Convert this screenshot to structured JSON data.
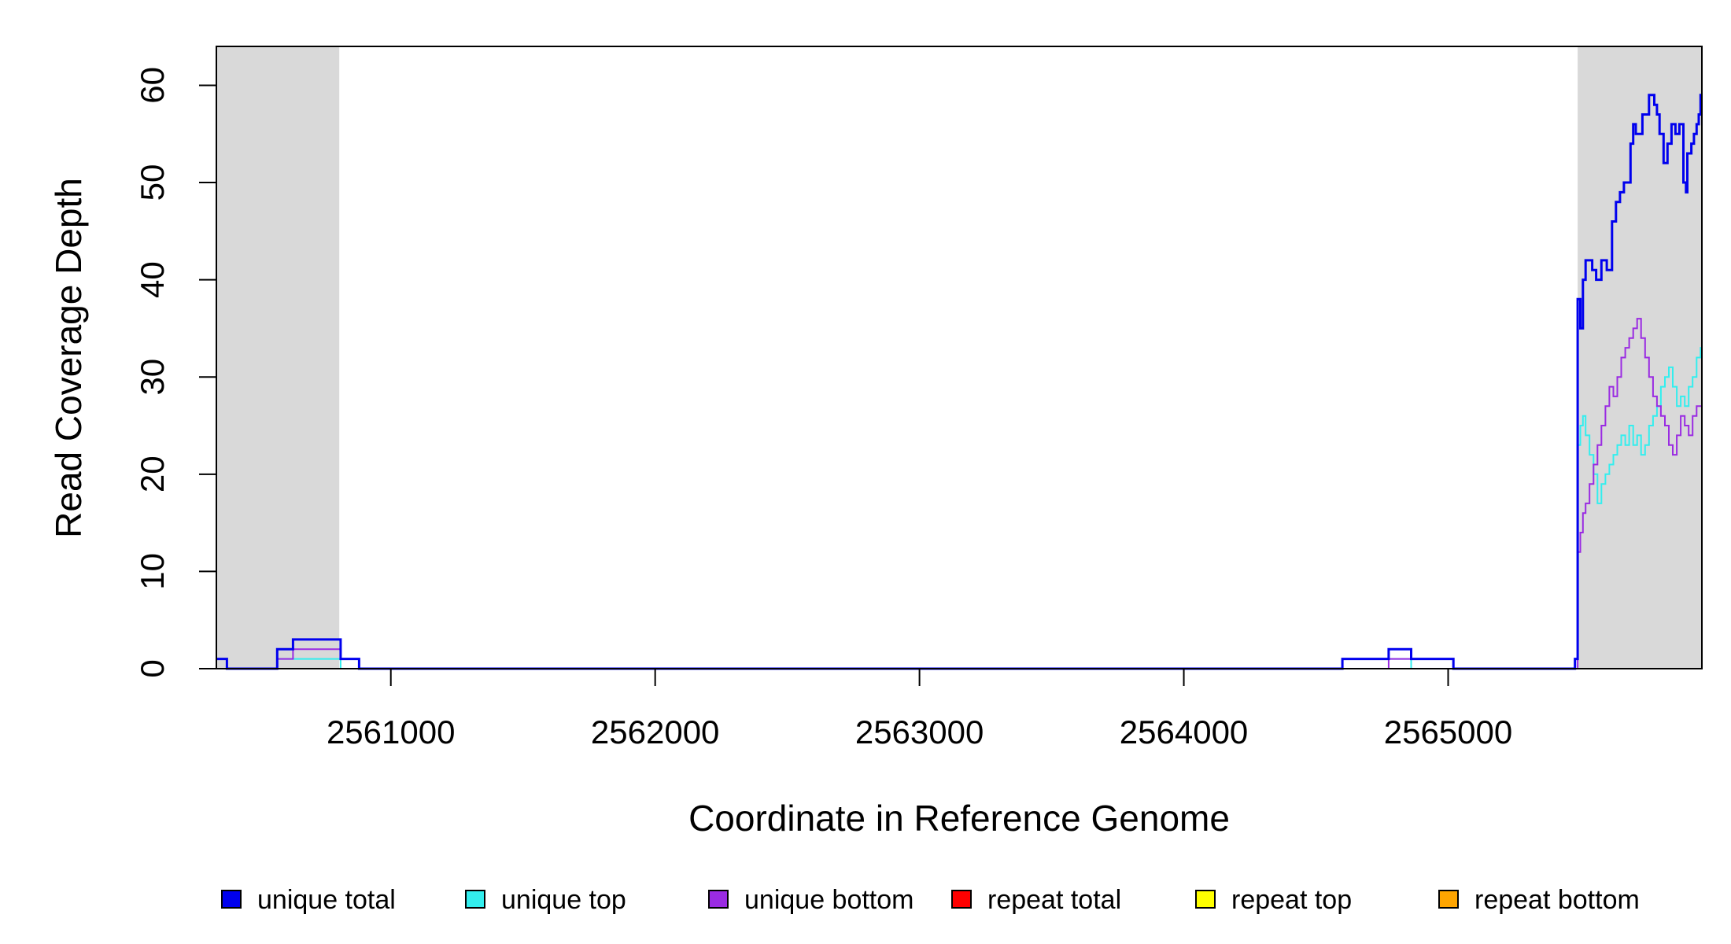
{
  "chart_data": {
    "type": "line",
    "xlabel": "Coordinate in Reference Genome",
    "ylabel": "Read Coverage Depth",
    "xlim": [
      2560340,
      2565960
    ],
    "ylim": [
      0,
      64
    ],
    "x_ticks": [
      2561000,
      2562000,
      2563000,
      2564000,
      2565000
    ],
    "x_tick_labels": [
      "2561000",
      "2562000",
      "2563000",
      "2564000",
      "2565000"
    ],
    "y_ticks": [
      0,
      10,
      20,
      30,
      40,
      50,
      60
    ],
    "y_tick_labels": [
      "0",
      "10",
      "20",
      "30",
      "40",
      "50",
      "60"
    ],
    "grid": false,
    "shaded_regions": [
      [
        2560340,
        2560805
      ],
      [
        2565490,
        2565960
      ]
    ],
    "shade_color": "#d9d9d9",
    "legend_position": "bottom",
    "series": [
      {
        "name": "unique total",
        "color": "#0000ee",
        "points": [
          [
            2560340,
            1
          ],
          [
            2560380,
            0
          ],
          [
            2560570,
            2
          ],
          [
            2560630,
            3
          ],
          [
            2560810,
            1
          ],
          [
            2560880,
            0
          ],
          [
            2564600,
            1
          ],
          [
            2564775,
            2
          ],
          [
            2564860,
            1
          ],
          [
            2565020,
            0
          ],
          [
            2565480,
            1
          ],
          [
            2565490,
            38
          ],
          [
            2565500,
            35
          ],
          [
            2565510,
            40
          ],
          [
            2565520,
            42
          ],
          [
            2565545,
            41
          ],
          [
            2565560,
            40
          ],
          [
            2565580,
            42
          ],
          [
            2565600,
            41
          ],
          [
            2565620,
            46
          ],
          [
            2565635,
            48
          ],
          [
            2565650,
            49
          ],
          [
            2565665,
            50
          ],
          [
            2565690,
            54
          ],
          [
            2565700,
            56
          ],
          [
            2565710,
            55
          ],
          [
            2565735,
            57
          ],
          [
            2565760,
            59
          ],
          [
            2565780,
            58
          ],
          [
            2565790,
            57
          ],
          [
            2565800,
            55
          ],
          [
            2565815,
            52
          ],
          [
            2565830,
            54
          ],
          [
            2565845,
            56
          ],
          [
            2565860,
            55
          ],
          [
            2565875,
            56
          ],
          [
            2565890,
            50
          ],
          [
            2565900,
            49
          ],
          [
            2565905,
            53
          ],
          [
            2565920,
            54
          ],
          [
            2565930,
            55
          ],
          [
            2565940,
            56
          ],
          [
            2565948,
            57
          ],
          [
            2565955,
            59
          ]
        ]
      },
      {
        "name": "unique top",
        "color": "#33eeee",
        "points": [
          [
            2560340,
            1
          ],
          [
            2560380,
            0
          ],
          [
            2560570,
            1
          ],
          [
            2560810,
            0
          ],
          [
            2564600,
            1
          ],
          [
            2564860,
            0
          ],
          [
            2565480,
            1
          ],
          [
            2565490,
            23
          ],
          [
            2565500,
            25
          ],
          [
            2565510,
            26
          ],
          [
            2565520,
            24
          ],
          [
            2565535,
            22
          ],
          [
            2565550,
            20
          ],
          [
            2565565,
            17
          ],
          [
            2565580,
            19
          ],
          [
            2565595,
            20
          ],
          [
            2565610,
            21
          ],
          [
            2565625,
            22
          ],
          [
            2565640,
            23
          ],
          [
            2565655,
            24
          ],
          [
            2565670,
            23
          ],
          [
            2565685,
            25
          ],
          [
            2565700,
            23
          ],
          [
            2565715,
            24
          ],
          [
            2565730,
            22
          ],
          [
            2565745,
            23
          ],
          [
            2565760,
            25
          ],
          [
            2565775,
            26
          ],
          [
            2565790,
            27
          ],
          [
            2565805,
            29
          ],
          [
            2565820,
            30
          ],
          [
            2565835,
            31
          ],
          [
            2565850,
            29
          ],
          [
            2565865,
            27
          ],
          [
            2565880,
            28
          ],
          [
            2565895,
            27
          ],
          [
            2565910,
            29
          ],
          [
            2565925,
            30
          ],
          [
            2565940,
            32
          ],
          [
            2565955,
            33
          ]
        ]
      },
      {
        "name": "unique bottom",
        "color": "#9a2be2",
        "points": [
          [
            2560570,
            1
          ],
          [
            2560630,
            2
          ],
          [
            2560810,
            1
          ],
          [
            2560880,
            0
          ],
          [
            2564775,
            1
          ],
          [
            2564860,
            1
          ],
          [
            2565020,
            0
          ],
          [
            2565480,
            0
          ],
          [
            2565490,
            12
          ],
          [
            2565500,
            14
          ],
          [
            2565510,
            16
          ],
          [
            2565520,
            17
          ],
          [
            2565535,
            19
          ],
          [
            2565550,
            21
          ],
          [
            2565565,
            23
          ],
          [
            2565580,
            25
          ],
          [
            2565595,
            27
          ],
          [
            2565610,
            29
          ],
          [
            2565625,
            28
          ],
          [
            2565640,
            30
          ],
          [
            2565655,
            32
          ],
          [
            2565670,
            33
          ],
          [
            2565685,
            34
          ],
          [
            2565700,
            35
          ],
          [
            2565715,
            36
          ],
          [
            2565730,
            34
          ],
          [
            2565745,
            32
          ],
          [
            2565760,
            30
          ],
          [
            2565775,
            28
          ],
          [
            2565790,
            27
          ],
          [
            2565805,
            26
          ],
          [
            2565820,
            25
          ],
          [
            2565835,
            23
          ],
          [
            2565850,
            22
          ],
          [
            2565865,
            24
          ],
          [
            2565880,
            26
          ],
          [
            2565895,
            25
          ],
          [
            2565910,
            24
          ],
          [
            2565925,
            26
          ],
          [
            2565940,
            27
          ],
          [
            2565955,
            27
          ]
        ]
      },
      {
        "name": "repeat total",
        "color": "#ff0000",
        "points": [
          [
            2560340,
            0
          ],
          [
            2565960,
            0
          ]
        ]
      },
      {
        "name": "repeat top",
        "color": "#ffff00",
        "points": [
          [
            2560340,
            0
          ],
          [
            2565960,
            0
          ]
        ]
      },
      {
        "name": "repeat bottom",
        "color": "#ffa500",
        "points": [
          [
            2560340,
            0
          ],
          [
            2565960,
            0
          ]
        ]
      }
    ]
  }
}
